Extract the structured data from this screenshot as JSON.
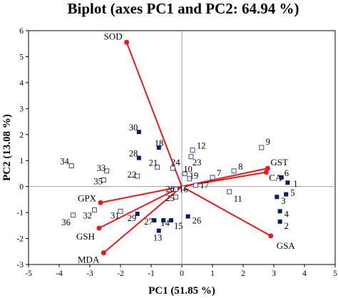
{
  "chart_data": {
    "type": "scatter",
    "title": "Biplot (axes PC1 and PC2: 64.94 %)",
    "xlabel": "PC1 (51.85 %)",
    "ylabel": "PC2 (13.08 %)",
    "xlim": [
      -5,
      5
    ],
    "ylim": [
      -3,
      6
    ],
    "xticks": [
      "-5",
      "-4",
      "-3",
      "-2",
      "-1",
      "0",
      "1",
      "2",
      "3",
      "4",
      "5"
    ],
    "yticks": [
      "-3",
      "-2",
      "-1",
      "0",
      "1",
      "2",
      "3",
      "4",
      "5",
      "6"
    ],
    "grid": false,
    "colors": {
      "vector": "#e8191b",
      "filled_marker": "#0d1d63",
      "open_marker": "#3c4a8c",
      "axis": "#000000",
      "zero_line": "#9aa0a6"
    },
    "variables": [
      {
        "name": "SOD",
        "x": -1.8,
        "y": 5.55
      },
      {
        "name": "GST",
        "x": 2.8,
        "y": 0.7
      },
      {
        "name": "CA",
        "x": 2.75,
        "y": 0.55
      },
      {
        "name": "GPX",
        "x": -2.65,
        "y": -0.62
      },
      {
        "name": "GSH",
        "x": -2.7,
        "y": -1.6
      },
      {
        "name": "MDA",
        "x": -2.55,
        "y": -2.55
      },
      {
        "name": "GSA",
        "x": 2.9,
        "y": -1.9
      }
    ],
    "observations": [
      {
        "id": "1",
        "x": 3.45,
        "y": 0.15,
        "filled": true
      },
      {
        "id": "2",
        "x": 3.2,
        "y": -1.35,
        "filled": true
      },
      {
        "id": "3",
        "x": 3.1,
        "y": -0.4,
        "filled": true
      },
      {
        "id": "4",
        "x": 3.2,
        "y": -0.95,
        "filled": true
      },
      {
        "id": "5",
        "x": 3.4,
        "y": -0.3,
        "filled": true
      },
      {
        "id": "6",
        "x": 3.25,
        "y": 0.35,
        "filled": true
      },
      {
        "id": "7",
        "x": 1.0,
        "y": 0.35,
        "filled": false
      },
      {
        "id": "8",
        "x": 1.7,
        "y": 0.6,
        "filled": false
      },
      {
        "id": "9",
        "x": 2.6,
        "y": 1.5,
        "filled": false
      },
      {
        "id": "10",
        "x": 0.1,
        "y": 0.5,
        "filled": false
      },
      {
        "id": "11",
        "x": 1.55,
        "y": -0.2,
        "filled": false
      },
      {
        "id": "12",
        "x": 0.35,
        "y": 1.4,
        "filled": false
      },
      {
        "id": "13",
        "x": -0.75,
        "y": -1.7,
        "filled": true
      },
      {
        "id": "14",
        "x": -0.6,
        "y": -1.3,
        "filled": true
      },
      {
        "id": "15",
        "x": -0.35,
        "y": -1.3,
        "filled": true
      },
      {
        "id": "16",
        "x": 0.05,
        "y": -0.05,
        "filled": false
      },
      {
        "id": "17",
        "x": 0.45,
        "y": 0.05,
        "filled": false
      },
      {
        "id": "18",
        "x": -0.75,
        "y": 1.5,
        "filled": true
      },
      {
        "id": "19",
        "x": 0.25,
        "y": 0.3,
        "filled": false
      },
      {
        "id": "20",
        "x": -0.2,
        "y": -0.1,
        "filled": false
      },
      {
        "id": "21",
        "x": -0.8,
        "y": 0.75,
        "filled": false
      },
      {
        "id": "22",
        "x": -1.45,
        "y": 0.4,
        "filled": false
      },
      {
        "id": "23",
        "x": 0.3,
        "y": 1.15,
        "filled": false
      },
      {
        "id": "24",
        "x": -0.3,
        "y": 0.7,
        "filled": false
      },
      {
        "id": "25",
        "x": -0.2,
        "y": -0.4,
        "filled": false
      },
      {
        "id": "26",
        "x": 0.2,
        "y": -1.15,
        "filled": true
      },
      {
        "id": "27",
        "x": -0.9,
        "y": -1.3,
        "filled": true
      },
      {
        "id": "28",
        "x": -1.4,
        "y": 1.1,
        "filled": true
      },
      {
        "id": "29",
        "x": -1.45,
        "y": -1.05,
        "filled": true
      },
      {
        "id": "30",
        "x": -1.4,
        "y": 2.1,
        "filled": true
      },
      {
        "id": "31",
        "x": -2.0,
        "y": -0.95,
        "filled": false
      },
      {
        "id": "32",
        "x": -2.85,
        "y": -0.9,
        "filled": false
      },
      {
        "id": "33",
        "x": -2.45,
        "y": 0.6,
        "filled": false
      },
      {
        "id": "34",
        "x": -3.6,
        "y": 0.8,
        "filled": false
      },
      {
        "id": "35",
        "x": -2.55,
        "y": 0.25,
        "filled": false
      },
      {
        "id": "36",
        "x": -3.55,
        "y": -1.1,
        "filled": false
      }
    ]
  }
}
